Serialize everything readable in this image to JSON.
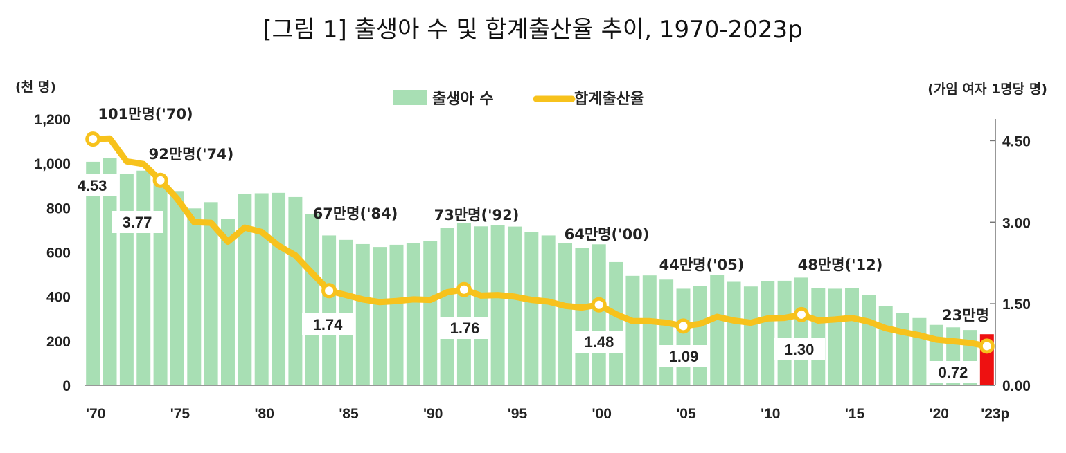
{
  "title": "[그림 1] 출생아 수 및 합계출산율 추이, 1970-2023p",
  "chart_data": {
    "type": "bar+line",
    "title": "[그림 1] 출생아 수 및 합계출산율 추이, 1970-2023p",
    "left_axis": {
      "unit_label": "(천 명)",
      "range": [
        0,
        1200
      ],
      "ticks": [
        "0",
        "200",
        "400",
        "600",
        "800",
        "1,000",
        "1,200"
      ]
    },
    "right_axis": {
      "unit_label": "(가임 여자 1명당 명)",
      "range": [
        0,
        4.9
      ],
      "ticks": [
        "0.00",
        "1.50",
        "3.00",
        "4.50"
      ]
    },
    "x_tick_labels": [
      "'70",
      "'75",
      "'80",
      "'85",
      "'90",
      "'95",
      "'00",
      "'05",
      "'10",
      "'15",
      "'20",
      "'23p"
    ],
    "legend": {
      "position": "top-center",
      "bar_label": "출생아 수",
      "line_label": "합계출산율"
    },
    "colors": {
      "bar": "#a8dfb4",
      "bar_highlight": "#ee1111",
      "line": "#f7c21c",
      "marker_fill": "#ffffff"
    },
    "years": [
      1970,
      1971,
      1972,
      1973,
      1974,
      1975,
      1976,
      1977,
      1978,
      1979,
      1980,
      1981,
      1982,
      1983,
      1984,
      1985,
      1986,
      1987,
      1988,
      1989,
      1990,
      1991,
      1992,
      1993,
      1994,
      1995,
      1996,
      1997,
      1998,
      1999,
      2000,
      2001,
      2002,
      2003,
      2004,
      2005,
      2006,
      2007,
      2008,
      2009,
      2010,
      2011,
      2012,
      2013,
      2014,
      2015,
      2016,
      2017,
      2018,
      2019,
      2020,
      2021,
      2022,
      2023
    ],
    "births_thousand": [
      1007,
      1025,
      953,
      967,
      925,
      875,
      797,
      825,
      750,
      862,
      865,
      867,
      848,
      770,
      675,
      655,
      636,
      623,
      633,
      639,
      650,
      709,
      731,
      716,
      721,
      715,
      691,
      675,
      641,
      620,
      635,
      555,
      493,
      495,
      476,
      435,
      448,
      497,
      466,
      445,
      470,
      471,
      485,
      437,
      435,
      438,
      406,
      358,
      327,
      303,
      272,
      261,
      249,
      230
    ],
    "tfr": [
      4.53,
      4.54,
      4.12,
      4.07,
      3.77,
      3.43,
      3.0,
      2.99,
      2.64,
      2.9,
      2.82,
      2.57,
      2.39,
      2.06,
      1.74,
      1.66,
      1.58,
      1.53,
      1.55,
      1.58,
      1.57,
      1.71,
      1.76,
      1.65,
      1.66,
      1.63,
      1.57,
      1.54,
      1.46,
      1.43,
      1.48,
      1.31,
      1.18,
      1.18,
      1.15,
      1.09,
      1.13,
      1.26,
      1.19,
      1.15,
      1.23,
      1.24,
      1.3,
      1.19,
      1.21,
      1.24,
      1.17,
      1.05,
      0.98,
      0.92,
      0.84,
      0.81,
      0.78,
      0.72
    ],
    "bar_annotations": [
      {
        "year": 1970,
        "text": "101만명('70)"
      },
      {
        "year": 1974,
        "text": "92만명('74)"
      },
      {
        "year": 1984,
        "text": "67만명('84)"
      },
      {
        "year": 1992,
        "text": "73만명('92)"
      },
      {
        "year": 2000,
        "text": "64만명('00)"
      },
      {
        "year": 2005,
        "text": "44만명('05)"
      },
      {
        "year": 2012,
        "text": "48만명('12)"
      },
      {
        "year": 2023,
        "text": "23만명"
      }
    ],
    "tfr_annotations": [
      {
        "year": 1970,
        "text": "4.53"
      },
      {
        "year": 1974,
        "text": "3.77"
      },
      {
        "year": 1984,
        "text": "1.74"
      },
      {
        "year": 1992,
        "text": "1.76"
      },
      {
        "year": 2000,
        "text": "1.48"
      },
      {
        "year": 2005,
        "text": "1.09"
      },
      {
        "year": 2012,
        "text": "1.30"
      },
      {
        "year": 2023,
        "text": "0.72"
      }
    ]
  }
}
